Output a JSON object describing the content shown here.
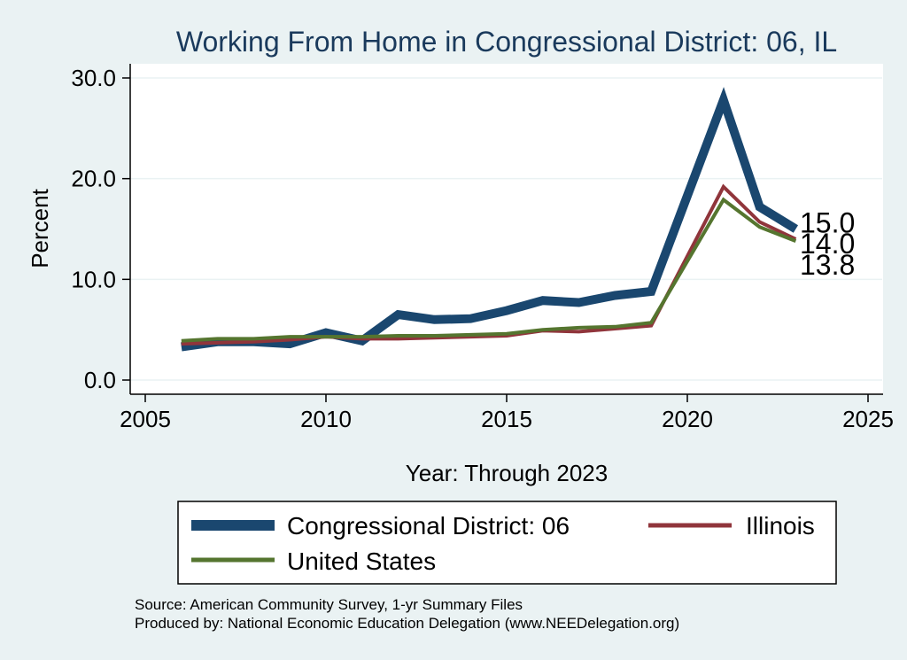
{
  "chart_data": {
    "type": "line",
    "title": "Working From Home in Congressional District: 06, IL",
    "xlabel": "Year: Through 2023",
    "ylabel": "Percent",
    "xlim": [
      2005,
      2025
    ],
    "ylim": [
      0,
      30
    ],
    "xticks": [
      2005,
      2010,
      2015,
      2020,
      2025
    ],
    "yticks": [
      0,
      10,
      20,
      30
    ],
    "ytick_labels": [
      "0.0",
      "10.0",
      "20.0",
      "30.0"
    ],
    "grid": true,
    "x": [
      2006,
      2007,
      2008,
      2009,
      2010,
      2011,
      2012,
      2013,
      2014,
      2015,
      2016,
      2017,
      2018,
      2019,
      2020,
      2021,
      2022,
      2023
    ],
    "series": [
      {
        "name": "Congressional District: 06",
        "color": "#1a476f",
        "values": [
          3.3,
          3.8,
          3.8,
          3.6,
          4.7,
          3.9,
          6.5,
          6.0,
          6.1,
          6.9,
          7.9,
          7.7,
          8.4,
          8.8,
          null,
          27.8,
          17.2,
          15.0
        ],
        "end_label": "15.0"
      },
      {
        "name": "Illinois",
        "color": "#90353b",
        "values": [
          3.6,
          3.7,
          3.8,
          4.0,
          4.3,
          4.1,
          4.1,
          4.2,
          4.3,
          4.4,
          4.9,
          4.8,
          5.1,
          5.4,
          null,
          19.2,
          15.7,
          14.0
        ],
        "end_label": "14.0"
      },
      {
        "name": "United States",
        "color": "#55752f",
        "values": [
          3.9,
          4.1,
          4.1,
          4.3,
          4.3,
          4.3,
          4.4,
          4.4,
          4.5,
          4.6,
          5.0,
          5.2,
          5.3,
          5.7,
          null,
          17.9,
          15.2,
          13.8
        ],
        "end_label": "13.8"
      }
    ],
    "legend_position": "bottom",
    "source_lines": [
      "Source: American Community Survey, 1-yr Summary Files",
      "Produced by: National Economic Education Delegation (www.NEEDelegation.org)"
    ]
  }
}
